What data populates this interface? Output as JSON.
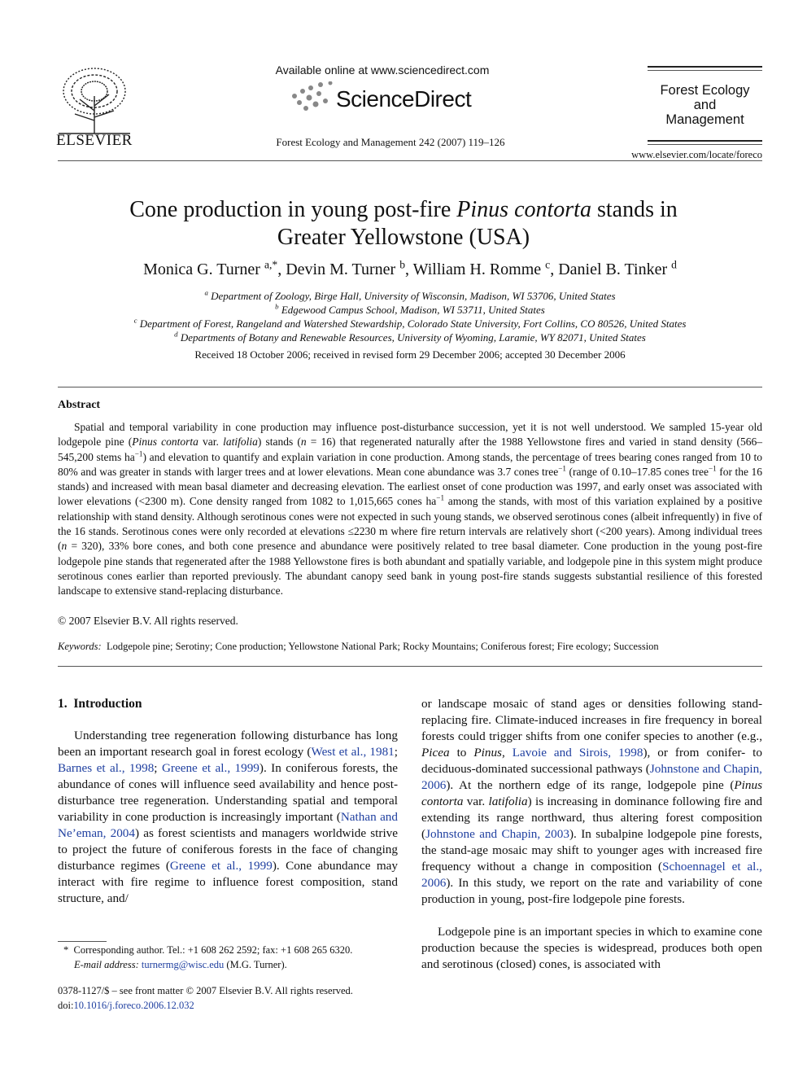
{
  "header": {
    "publisher": "ELSEVIER",
    "available_online": "Available online at www.sciencedirect.com",
    "brand": "ScienceDirect",
    "citation": "Forest Ecology and Management 242 (2007) 119–126",
    "journal_name": [
      "Forest Ecology",
      "and",
      "Management"
    ],
    "journal_url": "www.elsevier.com/locate/foreco"
  },
  "title": [
    "Cone production in young post-fire ",
    {
      "text": "Pinus contorta",
      "style": "italic"
    },
    " stands in Greater Yellowstone (USA)"
  ],
  "authors": [
    "Monica G. Turner ",
    {
      "text": "a,*",
      "style": "sup"
    },
    ", Devin M. Turner ",
    {
      "text": "b",
      "style": "sup"
    },
    ", William H. Romme ",
    {
      "text": "c",
      "style": "sup"
    },
    ", Daniel B. Tinker ",
    {
      "text": "d",
      "style": "sup"
    }
  ],
  "affiliations": [
    [
      {
        "text": "a",
        "style": "sup"
      },
      " Department of Zoology, Birge Hall, University of Wisconsin, Madison, WI 53706, United States"
    ],
    [
      {
        "text": "b",
        "style": "sup"
      },
      " Edgewood Campus School, Madison, WI 53711, United States"
    ],
    [
      {
        "text": "c",
        "style": "sup"
      },
      " Department of Forest, Rangeland and Watershed Stewardship, Colorado State University, Fort Collins, CO 80526, United States"
    ],
    [
      {
        "text": "d",
        "style": "sup"
      },
      " Departments of Botany and Renewable Resources, University of Wyoming, Laramie, WY 82071, United States"
    ]
  ],
  "received": "Received 18 October 2006; received in revised form 29 December 2006; accepted 30 December 2006",
  "abstract": {
    "heading": "Abstract",
    "body": [
      "Spatial and temporal variability in cone production may influence post-disturbance succession, yet it is not well understood. We sampled 15-year old lodgepole pine (",
      {
        "text": "Pinus contorta",
        "style": "italic"
      },
      " var. ",
      {
        "text": "latifolia",
        "style": "italic"
      },
      ") stands (",
      {
        "text": "n",
        "style": "italic"
      },
      " = 16) that regenerated naturally after the 1988 Yellowstone fires and varied in stand density (566–545,200 stems ha",
      {
        "text": "−1",
        "style": "sup"
      },
      ") and elevation to quantify and explain variation in cone production. Among stands, the percentage of trees bearing cones ranged from 10 to 80% and was greater in stands with larger trees and at lower elevations. Mean cone abundance was 3.7 cones tree",
      {
        "text": "−1",
        "style": "sup"
      },
      " (range of 0.10–17.85 cones tree",
      {
        "text": "−1",
        "style": "sup"
      },
      " for the 16 stands) and increased with mean basal diameter and decreasing elevation. The earliest onset of cone production was 1997, and early onset was associated with lower elevations (<2300 m). Cone density ranged from 1082 to 1,015,665 cones ha",
      {
        "text": "−1",
        "style": "sup"
      },
      " among the stands, with most of this variation explained by a positive relationship with stand density. Although serotinous cones were not expected in such young stands, we observed serotinous cones (albeit infrequently) in five of the 16 stands. Serotinous cones were only recorded at elevations ≤2230 m where fire return intervals are relatively short (<200 years). Among individual trees (",
      {
        "text": "n",
        "style": "italic"
      },
      " = 320), 33% bore cones, and both cone presence and abundance were positively related to tree basal diameter. Cone production in the young post-fire lodgepole pine stands that regenerated after the 1988 Yellowstone fires is both abundant and spatially variable, and lodgepole pine in this system might produce serotinous cones earlier than reported previously. The abundant canopy seed bank in young post-fire stands suggests substantial resilience of this forested landscape to extensive stand-replacing disturbance."
    ],
    "copyright": "© 2007 Elsevier B.V. All rights reserved."
  },
  "keywords": [
    {
      "text": "Keywords:",
      "style": "italic"
    },
    "  Lodgepole pine; Serotiny; Cone production; Yellowstone National Park; Rocky Mountains; Coniferous forest; Fire ecology; Succession"
  ],
  "section": {
    "heading": "1.  Introduction",
    "left": [
      "Understanding tree regeneration following disturbance has long been an important research goal in forest ecology (",
      {
        "text": "West et al., 1981",
        "style": "link"
      },
      "; ",
      {
        "text": "Barnes et al., 1998",
        "style": "link"
      },
      "; ",
      {
        "text": "Greene et al., 1999",
        "style": "link"
      },
      "). In coniferous forests, the abundance of cones will influence seed availability and hence post-disturbance tree regeneration. Understanding spatial and temporal variability in cone production is increasingly important (",
      {
        "text": "Nathan and Ne’eman, 2004",
        "style": "link"
      },
      ") as forest scientists and managers worldwide strive to project the future of coniferous forests in the face of changing disturbance regimes (",
      {
        "text": "Greene et al., 1999",
        "style": "link"
      },
      "). Cone abundance may interact with fire regime to influence forest composition, stand structure, and/"
    ],
    "right_1": [
      "or landscape mosaic of stand ages or densities following stand-replacing fire. Climate-induced increases in fire frequency in boreal forests could trigger shifts from one conifer species to another (e.g., ",
      {
        "text": "Picea",
        "style": "italic"
      },
      " to ",
      {
        "text": "Pinus",
        "style": "italic"
      },
      ", ",
      {
        "text": "Lavoie and Sirois, 1998",
        "style": "link"
      },
      "), or from conifer- to deciduous-dominated successional pathways (",
      {
        "text": "Johnstone and Chapin, 2006",
        "style": "link"
      },
      "). At the northern edge of its range, lodgepole pine (",
      {
        "text": "Pinus contorta",
        "style": "italic"
      },
      " var. ",
      {
        "text": "latifolia",
        "style": "italic"
      },
      ") is increasing in dominance following fire and extending its range northward, thus altering forest composition (",
      {
        "text": "Johnstone and Chapin, 2003",
        "style": "link"
      },
      "). In subalpine lodgepole pine forests, the stand-age mosaic may shift to younger ages with increased fire frequency without a change in composition (",
      {
        "text": "Schoennagel et al., 2006",
        "style": "link"
      },
      "). In this study, we report on the rate and variability of cone production in young, post-fire lodgepole pine forests."
    ],
    "right_2": [
      "Lodgepole pine is an important species in which to examine cone production because the species is widespread, produces both open and serotinous (closed) cones, is associated with"
    ]
  },
  "footnote": {
    "line_1": [
      "*  Corresponding author. Tel.: +1 608 262 2592; fax: +1 608 265 6320."
    ],
    "line_2": [
      {
        "text": "E-mail address:",
        "style": "italic"
      },
      " ",
      {
        "text": "turnermg@wisc.edu",
        "style": "link"
      },
      " (M.G. Turner)."
    ]
  },
  "footer": {
    "line_1": [
      "0378-1127/$ – see front matter © 2007 Elsevier B.V. All rights reserved."
    ],
    "line_2": [
      "doi:",
      {
        "text": "10.1016/j.foreco.2006.12.032",
        "style": "link"
      }
    ]
  }
}
